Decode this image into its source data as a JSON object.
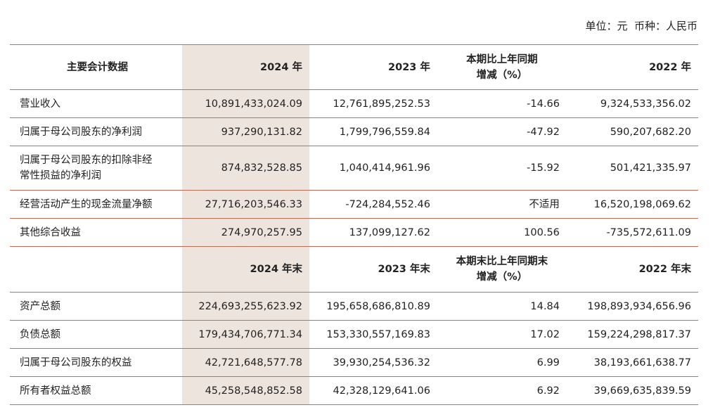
{
  "header": {
    "unit": "单位：元  币种：人民币"
  },
  "table": {
    "header": [
      [
        "主要会计数据"
      ],
      [
        "2024 年"
      ],
      [
        "2023 年"
      ],
      [
        "本期比上年同期",
        "增减（%）"
      ],
      [
        "2022 年"
      ]
    ],
    "rows": [
      [
        [
          "营业收入"
        ],
        "10,891,433,024.09",
        "12,761,895,252.53",
        "-14.66",
        "9,324,533,356.02"
      ],
      [
        [
          "归属于母公司股东的净利润"
        ],
        "937,290,131.82",
        "1,799,796,559.84",
        "-47.92",
        "590,207,682.20"
      ],
      [
        [
          "归属于母公司股东的扣除非经",
          "常性损益的净利润"
        ],
        "874,832,528.85",
        "1,040,414,961.96",
        "-15.92",
        "501,421,335.97"
      ],
      [
        [
          "经营活动产生的现金流量净额"
        ],
        "27,716,203,546.33",
        "-724,284,552.46",
        "不适用",
        "16,520,198,069.62"
      ],
      [
        [
          "其他综合收益"
        ],
        "274,970,257.95",
        "137,099,127.62",
        "100.56",
        "-735,572,611.09"
      ]
    ],
    "header2": [
      [],
      [
        "2024 年末"
      ],
      [
        "2023 年末"
      ],
      [
        "本期末比上年同期末",
        "增减（%）"
      ],
      [
        "2022 年末"
      ]
    ],
    "rows2": [
      [
        [
          "资产总额"
        ],
        "224,693,255,623.92",
        "195,658,686,810.89",
        "14.84",
        "198,893,934,656.96"
      ],
      [
        [
          "负债总额"
        ],
        "179,434,706,771.34",
        "153,330,557,169.83",
        "17.02",
        "159,224,298,817.37"
      ],
      [
        [
          "归属于母公司股东的权益"
        ],
        "42,721,648,577.78",
        "39,930,254,536.32",
        "6.99",
        "38,193,661,638.77"
      ],
      [
        [
          "所有者权益总额"
        ],
        "45,258,548,852.58",
        "42,328,129,641.06",
        "6.92",
        "39,669,635,839.59"
      ]
    ]
  }
}
